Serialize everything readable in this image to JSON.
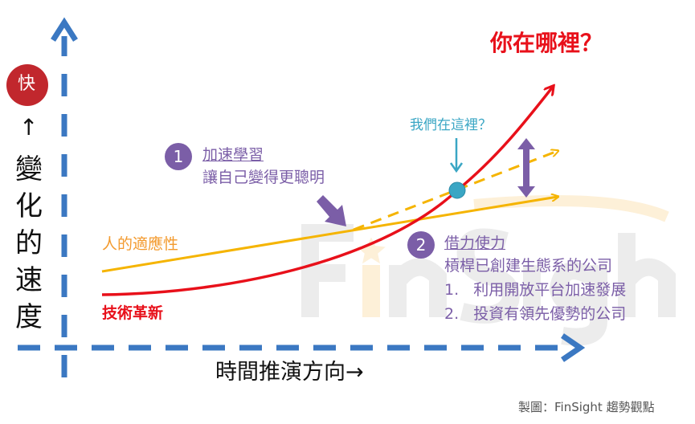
{
  "title": "你在哪裡？",
  "y_axis": {
    "badge": "快",
    "arrow": "↑",
    "label": [
      "變",
      "化",
      "的",
      "速",
      "度"
    ]
  },
  "x_axis": {
    "label": "時間推演方向→"
  },
  "curves": {
    "human": "人的適應性",
    "tech": "技術革新"
  },
  "marker": {
    "label": "我們在這裡？"
  },
  "point1": {
    "number": "1",
    "heading": "加速學習",
    "lines": [
      "讓自己變得更聰明"
    ]
  },
  "point2": {
    "number": "2",
    "heading": "借力使力",
    "lines": [
      "槓桿已創建生態系的公司",
      "1.   利用開放平台加速發展",
      "2.   投資有領先優勢的公司"
    ]
  },
  "watermark": "FinSight",
  "credit": "製圖：FinSight 趨勢觀點",
  "colors": {
    "axis": "#3b78c2",
    "tech": "#e8101a",
    "human": "#f5b400",
    "purple": "#7b5ea7",
    "teal": "#3aa6c4",
    "title": "#e8101a"
  }
}
